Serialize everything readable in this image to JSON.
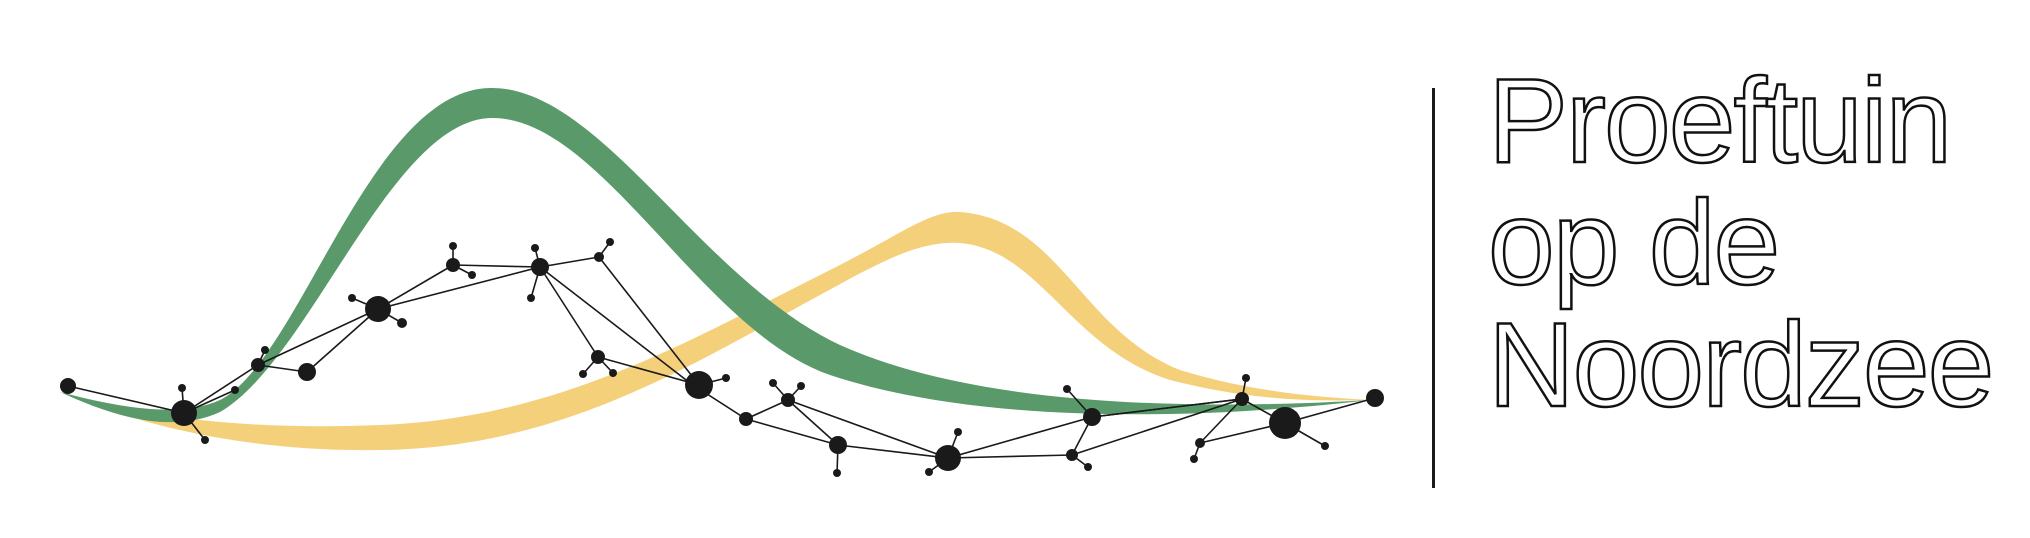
{
  "wordmark": {
    "line1": "Proeftuin",
    "line2": "op de",
    "line3": "Noordzee"
  },
  "colors": {
    "green": "#5a9a6a",
    "yellow": "#f5d07a",
    "network": "#1a1a1a",
    "divider": "#1a1a1a"
  }
}
